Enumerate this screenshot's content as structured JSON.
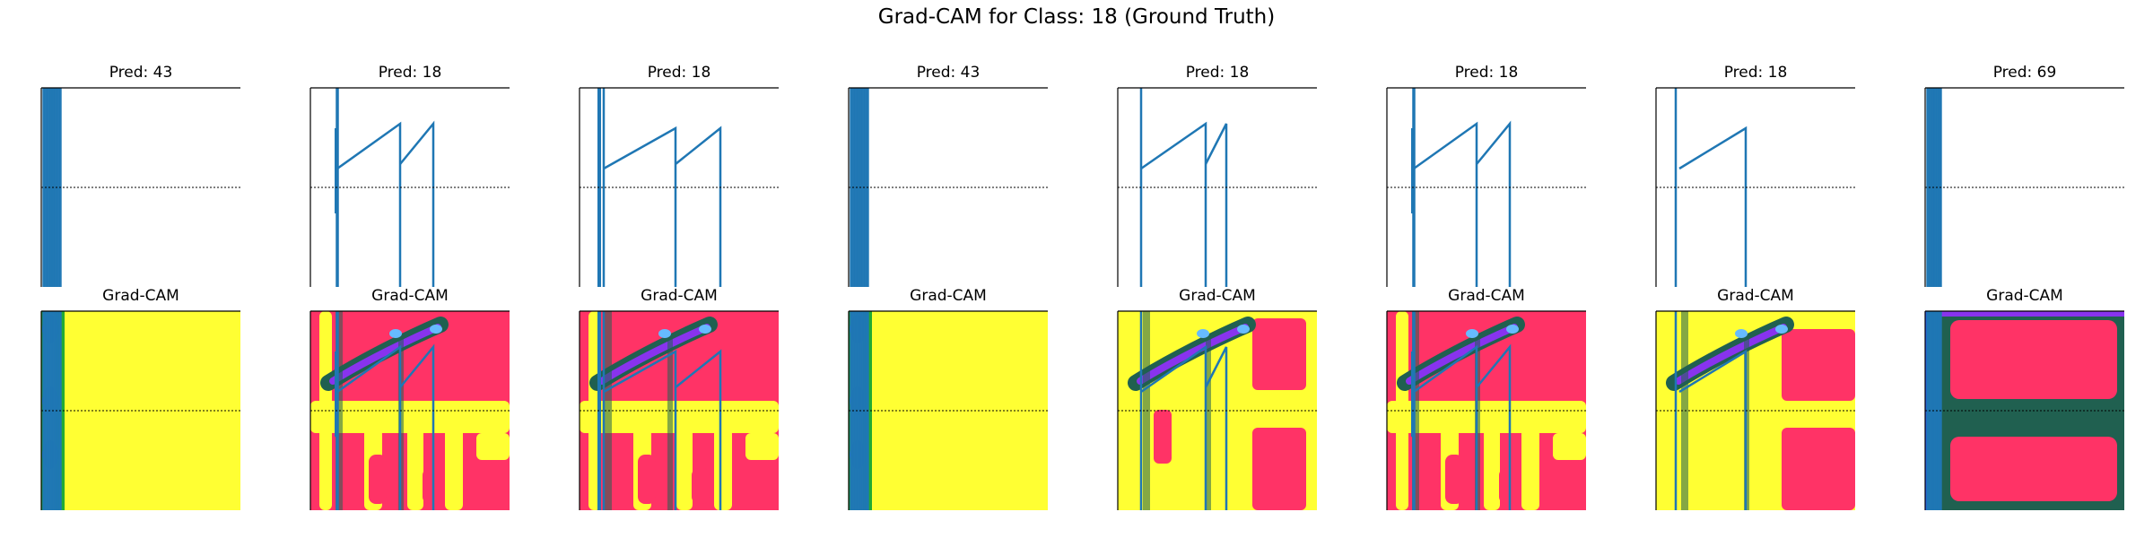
{
  "title": "Grad-CAM for Class: 18 (Ground Truth)",
  "gradcam_label": "Grad-CAM",
  "colors": {
    "signal": "#1f77b4",
    "cam_high": "#ffff33",
    "cam_mid": "#ff3366",
    "cam_dark": "#206050",
    "cam_blue": "#3355ff",
    "cam_purple": "#8833ee",
    "cam_green": "#22aa33"
  },
  "chart_data": [
    {
      "type": "line",
      "title": "Pred: 43",
      "signal": "dense_burst"
    },
    {
      "type": "line",
      "title": "Pred: 18",
      "signal": "ramp"
    },
    {
      "type": "line",
      "title": "Pred: 18",
      "signal": "ramp_alt"
    },
    {
      "type": "line",
      "title": "Pred: 43",
      "signal": "dense_burst"
    },
    {
      "type": "line",
      "title": "Pred: 18",
      "signal": "ramp_short"
    },
    {
      "type": "line",
      "title": "Pred: 18",
      "signal": "ramp"
    },
    {
      "type": "line",
      "title": "Pred: 18",
      "signal": "single_ramp"
    },
    {
      "type": "line",
      "title": "Pred: 69",
      "signal": "dense_burst_wide"
    }
  ]
}
